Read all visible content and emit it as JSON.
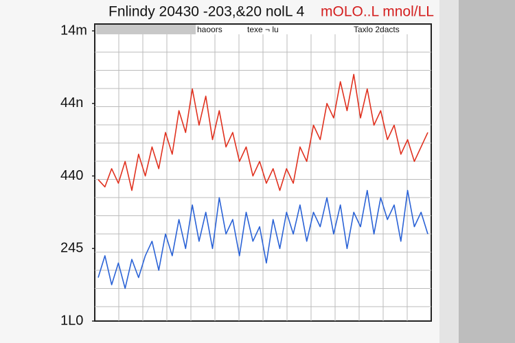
{
  "chart_data": {
    "type": "line",
    "title": "Fnlindy 20430 -203,&20 nolL 4",
    "title_unit": "mOLO..L mnol/LL",
    "header_labels": [
      "haoors",
      "texe ¬ lu",
      "Taxlo 2dacts"
    ],
    "ylim": [
      0,
      4
    ],
    "yticks": [
      {
        "value": 4,
        "label": "14m"
      },
      {
        "value": 3,
        "label": "44n"
      },
      {
        "value": 2,
        "label": "440"
      },
      {
        "value": 1,
        "label": "245"
      },
      {
        "value": 0,
        "label": "1L0"
      }
    ],
    "grid": true,
    "series": [
      {
        "color": "#e0301e",
        "values": [
          1.95,
          1.85,
          2.1,
          1.9,
          2.2,
          1.8,
          2.3,
          2.0,
          2.4,
          2.1,
          2.6,
          2.3,
          2.9,
          2.6,
          3.2,
          2.7,
          3.1,
          2.5,
          2.9,
          2.4,
          2.6,
          2.2,
          2.4,
          2.0,
          2.2,
          1.9,
          2.1,
          1.8,
          2.1,
          1.9,
          2.4,
          2.2,
          2.7,
          2.5,
          3.0,
          2.8,
          3.3,
          2.9,
          3.4,
          2.8,
          3.2,
          2.7,
          2.9,
          2.5,
          2.7,
          2.3,
          2.5,
          2.2,
          2.4,
          2.6
        ]
      },
      {
        "color": "#2a62d6",
        "values": [
          0.6,
          0.9,
          0.5,
          0.8,
          0.45,
          0.85,
          0.6,
          0.9,
          1.1,
          0.7,
          1.2,
          0.9,
          1.4,
          1.0,
          1.6,
          1.1,
          1.5,
          1.0,
          1.7,
          1.2,
          1.4,
          0.9,
          1.5,
          1.1,
          1.3,
          0.8,
          1.4,
          1.0,
          1.5,
          1.2,
          1.6,
          1.1,
          1.5,
          1.3,
          1.7,
          1.2,
          1.6,
          1.0,
          1.5,
          1.3,
          1.8,
          1.2,
          1.7,
          1.4,
          1.6,
          1.1,
          1.8,
          1.3,
          1.5,
          1.2
        ]
      }
    ]
  }
}
